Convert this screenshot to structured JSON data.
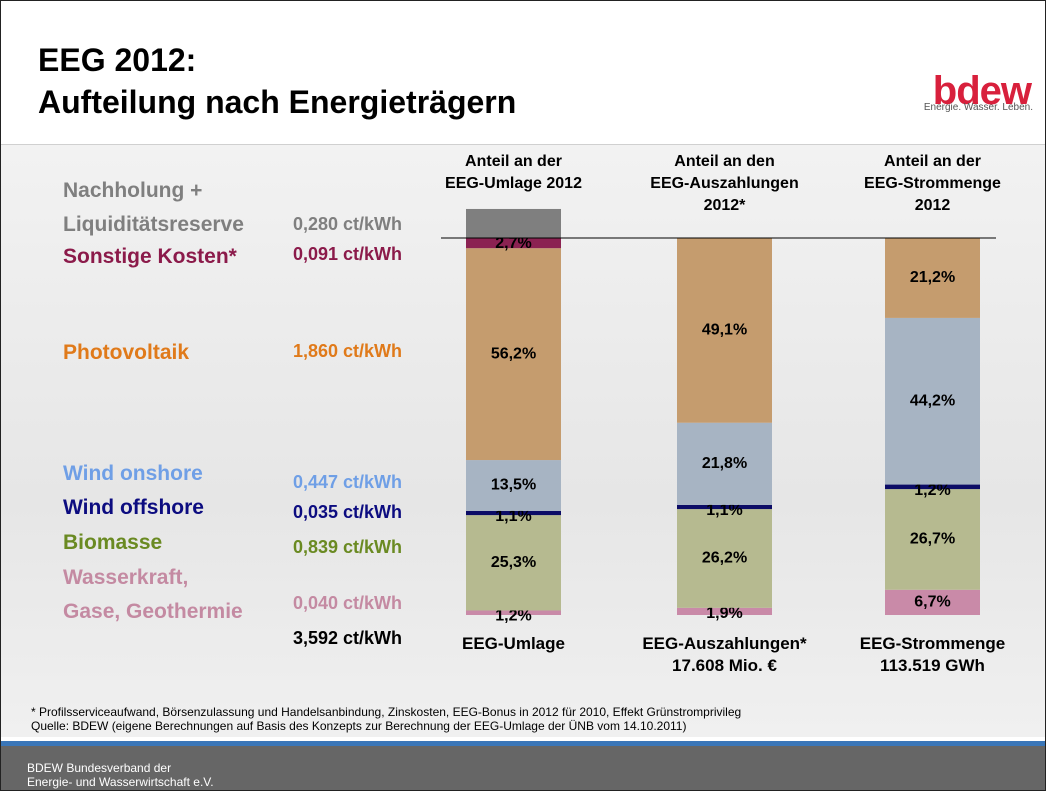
{
  "title": "EEG 2012:\nAufteilung nach Energieträgern",
  "logo": {
    "text": "bdew",
    "tagline": "Energie. Wasser. Leben."
  },
  "chart_data": {
    "type": "bar",
    "stacked": true,
    "column_titles": [
      "Anteil an der\nEEG-Umlage 2012",
      "Anteil an den\nEEG-Auszahlungen\n2012*",
      "Anteil an der\nEEG-Strommenge\n2012"
    ],
    "categories": [
      "EEG-Umlage",
      "EEG-Auszahlungen*\n17.608 Mio. €",
      "EEG-Strommenge\n113.519 GWh"
    ],
    "total_cost": "3,592 ct/kWh",
    "series": [
      {
        "name": "Wasserkraft,\nGase, Geothermie",
        "cost": "0,040 ct/kWh",
        "label_color": "#c48aa2",
        "color": "#c98aa8",
        "values": [
          1.2,
          1.9,
          6.7
        ],
        "value_labels": [
          "1,2%",
          "1,9%",
          "6,7%"
        ]
      },
      {
        "name": "Biomasse",
        "cost": "0,839 ct/kWh",
        "label_color": "#6a8a22",
        "color": "#b6ba90",
        "values": [
          25.3,
          26.2,
          26.7
        ],
        "value_labels": [
          "25,3%",
          "26,2%",
          "26,7%"
        ]
      },
      {
        "name": "Wind offshore",
        "cost": "0,035 ct/kWh",
        "label_color": "#0c0c80",
        "color": "#0c0c66",
        "values": [
          1.1,
          1.1,
          1.2
        ],
        "value_labels": [
          "1,1%",
          "1,1%",
          "1,2%"
        ]
      },
      {
        "name": "Wind onshore",
        "cost": "0,447 ct/kWh",
        "label_color": "#6f9fe6",
        "color": "#a7b4c3",
        "values": [
          13.5,
          21.8,
          44.2
        ],
        "value_labels": [
          "13,5%",
          "21,8%",
          "44,2%"
        ]
      },
      {
        "name": "Photovoltaik",
        "cost": "1,860 ct/kWh",
        "label_color": "#e07a1a",
        "color": "#c59c6e",
        "values": [
          56.2,
          49.1,
          21.2
        ],
        "value_labels": [
          "56,2%",
          "49,1%",
          "21,2%"
        ]
      },
      {
        "name": "Sonstige Kosten*",
        "cost": "0,091 ct/kWh",
        "label_color": "#8b1a4a",
        "color": "#8b2252",
        "values": [
          2.7,
          null,
          null
        ],
        "value_labels": [
          "2,7%",
          null,
          null
        ]
      },
      {
        "name": "Nachholung +\nLiquiditätsreserve",
        "cost": "0,280 ct/kWh",
        "label_color": "#7f7f7f",
        "color": "#7f7f7f",
        "values": [
          7.7,
          null,
          null
        ]
      }
    ]
  },
  "footnote": "* Profilsserviceaufwand, Börsenzulassung und Handelsanbindung, Zinskosten, EEG-Bonus in 2012 für 2010, Effekt Grünstromprivileg",
  "source": "Quelle: BDEW (eigene Berechnungen auf Basis des Konzepts zur Berechnung der EEG-Umlage der ÜNB vom 14.10.2011)",
  "organization": "BDEW Bundesverband der\nEnergie- und Wasserwirtschaft e.V."
}
